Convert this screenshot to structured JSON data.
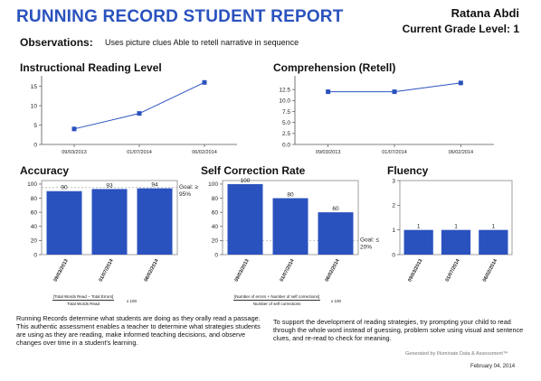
{
  "header": {
    "title": "RUNNING RECORD STUDENT REPORT",
    "student_name": "Ratana Abdi",
    "grade_level": "Current Grade Level: 1"
  },
  "observations": {
    "label": "Observations:",
    "text": "Uses picture clues  Able to retell narrative in sequence"
  },
  "chart_data": [
    {
      "id": "instructional-reading-level",
      "type": "line",
      "title": "Instructional Reading Level",
      "categories": [
        "09/03/2013",
        "01/07/2014",
        "06/02/2014"
      ],
      "values": [
        4,
        8,
        16
      ],
      "yticks": [
        0,
        5,
        10,
        15
      ],
      "ylim": [
        0,
        17
      ],
      "color": "#2a52be"
    },
    {
      "id": "comprehension-retell",
      "type": "line",
      "title": "Comprehension (Retell)",
      "categories": [
        "09/03/2013",
        "01/07/2014",
        "06/02/2014"
      ],
      "values": [
        12,
        12,
        14
      ],
      "yticks": [
        "0.0",
        "2.5",
        "5.0",
        "7.5",
        "10.0",
        "12.5"
      ],
      "ylim": [
        0,
        15
      ],
      "color": "#2a52be"
    },
    {
      "id": "accuracy",
      "type": "bar",
      "title": "Accuracy",
      "categories": [
        "09/03/2013",
        "01/07/2014",
        "06/02/2014"
      ],
      "values": [
        90,
        93,
        94
      ],
      "value_labels": [
        "90",
        "93",
        "94"
      ],
      "yticks": [
        0,
        20,
        40,
        60,
        80,
        100
      ],
      "ylim": [
        0,
        105
      ],
      "goal_label": "Goal: ≥ 95%",
      "goal_value": 95,
      "color": "#2a52be"
    },
    {
      "id": "self-correction-rate",
      "type": "bar",
      "title": "Self Correction Rate",
      "categories": [
        "09/03/2013",
        "01/07/2014",
        "06/02/2014"
      ],
      "values": [
        100,
        80,
        60
      ],
      "value_labels": [
        "100",
        "80",
        "60"
      ],
      "yticks": [
        0,
        20,
        40,
        60,
        80,
        100
      ],
      "ylim": [
        0,
        105
      ],
      "goal_label": "Goal: ≤ 20%",
      "goal_value": 20,
      "color": "#2a52be"
    },
    {
      "id": "fluency",
      "type": "bar",
      "title": "Fluency",
      "categories": [
        "09/03/2013",
        "01/07/2014",
        "06/02/2014"
      ],
      "values": [
        1,
        1,
        1
      ],
      "value_labels": [
        "1",
        "1",
        "1"
      ],
      "yticks": [
        0,
        1,
        2,
        3
      ],
      "ylim": [
        0,
        3
      ],
      "color": "#2a52be"
    }
  ],
  "formulas": {
    "accuracy_numerator": "[Total Words Read − Total Errors]",
    "accuracy_denominator": "Total Words Read",
    "accuracy_multiplier": "x 100",
    "scr_numerator": "[Number of errors + Number of self corrections]",
    "scr_denominator": "Number of self corrections",
    "scr_multiplier": "x 100"
  },
  "footer": {
    "left_text": "Running Records determine what students are doing as they orally read a passage. This authentic assessment enables a teacher to determine what strategies students are using as they are reading, make informed teaching decisions, and observe changes over time in a student's learning.",
    "right_text": "To support the development of reading strategies, try prompting your child to read through the whole word instead of guessing, problem solve using visual and sentence clues, and re-read to check for meaning.",
    "generated_by": "Generated by Illuminate Data & Assessment™",
    "date": "February 04, 2014"
  }
}
